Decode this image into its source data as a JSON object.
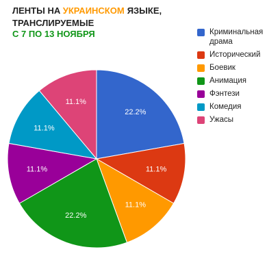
{
  "chart_data": {
    "type": "pie",
    "title": [
      {
        "text": "ЛЕНТЫ НА",
        "color": "#222222"
      },
      {
        "text": "УКРАИНСКОМ",
        "color": "#ff9900"
      },
      {
        "text": "ЯЗЫКЕ,",
        "color": "#222222"
      },
      {
        "text": "ТРАНСЛИРУЕМЫЕ",
        "color": "#222222"
      }
    ],
    "subtitle": {
      "text": "С 7 ПО 13 НОЯБРЯ",
      "color": "#109618"
    },
    "categories": [
      "Криминальная драма",
      "Исторический",
      "Боевик",
      "Анимация",
      "Фэнтези",
      "Комедия",
      "Ужасы"
    ],
    "values": [
      22.2,
      11.1,
      11.1,
      22.2,
      11.1,
      11.1,
      11.1
    ],
    "value_labels": [
      "22.2%",
      "11.1%",
      "11.1%",
      "22.2%",
      "11.1%",
      "11.1%",
      "11.1%"
    ],
    "colors": [
      "#3366cc",
      "#dc3912",
      "#ff9900",
      "#109618",
      "#990099",
      "#0099c6",
      "#dd4477"
    ]
  }
}
